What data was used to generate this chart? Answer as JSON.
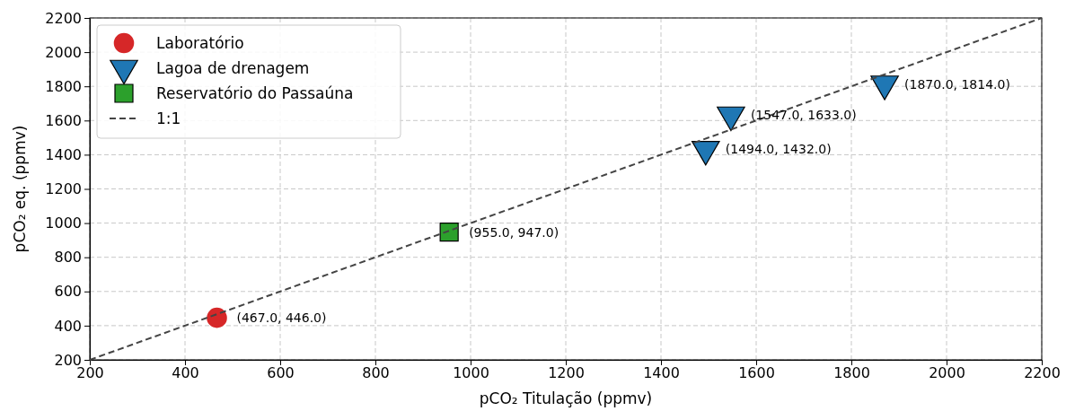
{
  "chart_data": {
    "type": "scatter",
    "xlabel": "pCO₂ Titulação (ppmv)",
    "ylabel": "pCO₂ eq. (ppmv)",
    "xlim": [
      200,
      2200
    ],
    "ylim": [
      200,
      2200
    ],
    "xticks": [
      200,
      400,
      600,
      800,
      1000,
      1200,
      1400,
      1600,
      1800,
      2000,
      2200
    ],
    "yticks": [
      200,
      400,
      600,
      800,
      1000,
      1200,
      1400,
      1600,
      1800,
      2000,
      2200
    ],
    "grid": true,
    "legend": "top left",
    "series": [
      {
        "name": "Laboratório",
        "color": "#d62728",
        "marker": "circle",
        "x": [
          467
        ],
        "values": [
          446
        ]
      },
      {
        "name": "Lagoa de drenagem",
        "color": "#1f77b4",
        "marker": "triangle-down",
        "x": [
          1494,
          1547,
          1870
        ],
        "values": [
          1432,
          1633,
          1814
        ]
      },
      {
        "name": "Reservatório do Passaúna",
        "color": "#2ca02c",
        "marker": "square",
        "x": [
          955
        ],
        "values": [
          947
        ]
      },
      {
        "name": "1:1",
        "type": "line",
        "color": "#444444",
        "line_style": "dashed",
        "marker": "none",
        "x": [
          200,
          2200
        ],
        "values": [
          200,
          2200
        ]
      }
    ],
    "annotations": [
      {
        "text": "(467.0, 446.0)",
        "x": 467,
        "y": 446
      },
      {
        "text": "(955.0, 947.0)",
        "x": 955,
        "y": 947
      },
      {
        "text": "(1494.0, 1432.0)",
        "x": 1494,
        "y": 1432
      },
      {
        "text": "(1547.0, 1633.0)",
        "x": 1547,
        "y": 1633
      },
      {
        "text": "(1870.0, 1814.0)",
        "x": 1870,
        "y": 1814
      }
    ]
  }
}
